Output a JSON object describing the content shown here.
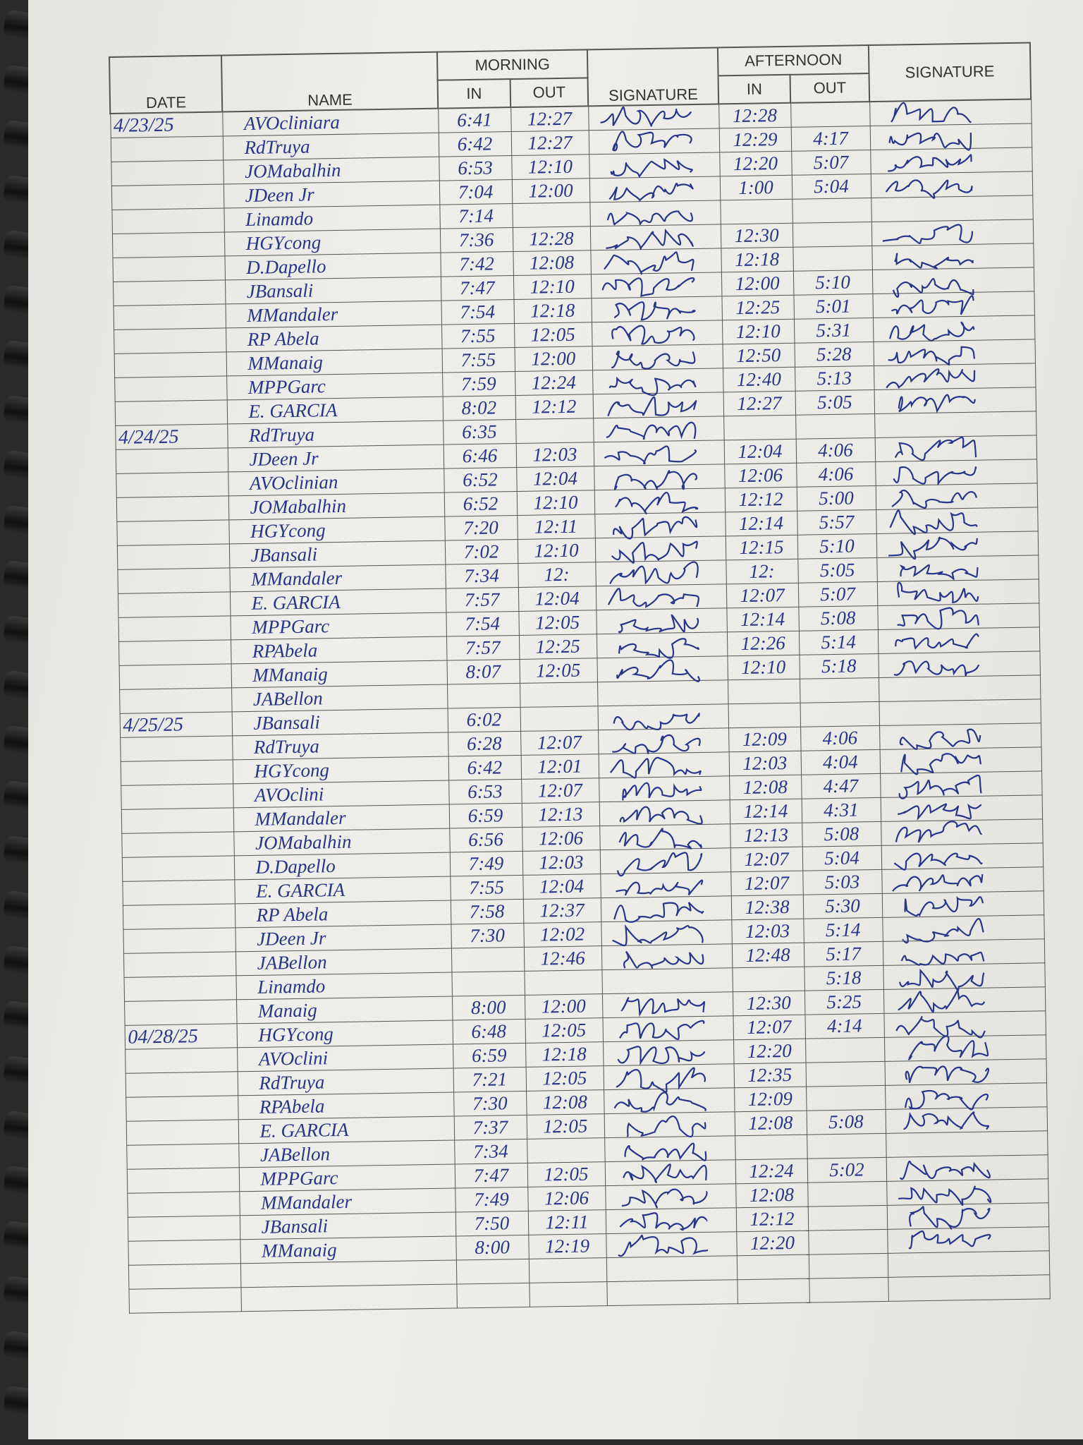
{
  "header": {
    "date": "DATE",
    "name": "NAME",
    "morning": "MORNING",
    "afternoon": "AFTERNOON",
    "in": "IN",
    "out": "OUT",
    "signature": "SIGNATURE"
  },
  "ink_color": "#27358a",
  "rows": [
    {
      "date": "4/23/25",
      "name": "AVOcliniara",
      "m_in": "6:41",
      "m_out": "12:27",
      "a_in": "12:28",
      "a_out": ""
    },
    {
      "date": "",
      "name": "RdTruya",
      "m_in": "6:42",
      "m_out": "12:27",
      "a_in": "12:29",
      "a_out": "4:17"
    },
    {
      "date": "",
      "name": "JOMabalhin",
      "m_in": "6:53",
      "m_out": "12:10",
      "a_in": "12:20",
      "a_out": "5:07"
    },
    {
      "date": "",
      "name": "JDeen Jr",
      "m_in": "7:04",
      "m_out": "12:00",
      "a_in": "1:00",
      "a_out": "5:04"
    },
    {
      "date": "",
      "name": "Linamdo",
      "m_in": "7:14",
      "m_out": "",
      "a_in": "",
      "a_out": ""
    },
    {
      "date": "",
      "name": "HGYcong",
      "m_in": "7:36",
      "m_out": "12:28",
      "a_in": "12:30",
      "a_out": ""
    },
    {
      "date": "",
      "name": "D.Dapello",
      "m_in": "7:42",
      "m_out": "12:08",
      "a_in": "12:18",
      "a_out": ""
    },
    {
      "date": "",
      "name": "JBansali",
      "m_in": "7:47",
      "m_out": "12:10",
      "a_in": "12:00",
      "a_out": "5:10"
    },
    {
      "date": "",
      "name": "MMandaler",
      "m_in": "7:54",
      "m_out": "12:18",
      "a_in": "12:25",
      "a_out": "5:01"
    },
    {
      "date": "",
      "name": "RP Abela",
      "m_in": "7:55",
      "m_out": "12:05",
      "a_in": "12:10",
      "a_out": "5:31"
    },
    {
      "date": "",
      "name": "MManaig",
      "m_in": "7:55",
      "m_out": "12:00",
      "a_in": "12:50",
      "a_out": "5:28"
    },
    {
      "date": "",
      "name": "MPPGarc",
      "m_in": "7:59",
      "m_out": "12:24",
      "a_in": "12:40",
      "a_out": "5:13"
    },
    {
      "date": "",
      "name": "E. GARCIA",
      "m_in": "8:02",
      "m_out": "12:12",
      "a_in": "12:27",
      "a_out": "5:05"
    },
    {
      "date": "4/24/25",
      "name": "RdTruya",
      "m_in": "6:35",
      "m_out": "",
      "a_in": "",
      "a_out": ""
    },
    {
      "date": "",
      "name": "JDeen Jr",
      "m_in": "6:46",
      "m_out": "12:03",
      "a_in": "12:04",
      "a_out": "4:06"
    },
    {
      "date": "",
      "name": "AVOclinian",
      "m_in": "6:52",
      "m_out": "12:04",
      "a_in": "12:06",
      "a_out": "4:06"
    },
    {
      "date": "",
      "name": "JOMabalhin",
      "m_in": "6:52",
      "m_out": "12:10",
      "a_in": "12:12",
      "a_out": "5:00"
    },
    {
      "date": "",
      "name": "HGYcong",
      "m_in": "7:20",
      "m_out": "12:11",
      "a_in": "12:14",
      "a_out": "5:57"
    },
    {
      "date": "",
      "name": "JBansali",
      "m_in": "7:02",
      "m_out": "12:10",
      "a_in": "12:15",
      "a_out": "5:10"
    },
    {
      "date": "",
      "name": "MMandaler",
      "m_in": "7:34",
      "m_out": "12:",
      "a_in": "12:",
      "a_out": "5:05"
    },
    {
      "date": "",
      "name": "E. GARCIA",
      "m_in": "7:57",
      "m_out": "12:04",
      "a_in": "12:07",
      "a_out": "5:07"
    },
    {
      "date": "",
      "name": "MPPGarc",
      "m_in": "7:54",
      "m_out": "12:05",
      "a_in": "12:14",
      "a_out": "5:08"
    },
    {
      "date": "",
      "name": "RPAbela",
      "m_in": "7:57",
      "m_out": "12:25",
      "a_in": "12:26",
      "a_out": "5:14"
    },
    {
      "date": "",
      "name": "MManaig",
      "m_in": "8:07",
      "m_out": "12:05",
      "a_in": "12:10",
      "a_out": "5:18"
    },
    {
      "date": "",
      "name": "JABellon",
      "m_in": "",
      "m_out": "",
      "a_in": "",
      "a_out": ""
    },
    {
      "date": "4/25/25",
      "name": "JBansali",
      "m_in": "6:02",
      "m_out": "",
      "a_in": "",
      "a_out": ""
    },
    {
      "date": "",
      "name": "RdTruya",
      "m_in": "6:28",
      "m_out": "12:07",
      "a_in": "12:09",
      "a_out": "4:06"
    },
    {
      "date": "",
      "name": "HGYcong",
      "m_in": "6:42",
      "m_out": "12:01",
      "a_in": "12:03",
      "a_out": "4:04"
    },
    {
      "date": "",
      "name": "AVOclini",
      "m_in": "6:53",
      "m_out": "12:07",
      "a_in": "12:08",
      "a_out": "4:47"
    },
    {
      "date": "",
      "name": "MMandaler",
      "m_in": "6:59",
      "m_out": "12:13",
      "a_in": "12:14",
      "a_out": "4:31"
    },
    {
      "date": "",
      "name": "JOMabalhin",
      "m_in": "6:56",
      "m_out": "12:06",
      "a_in": "12:13",
      "a_out": "5:08"
    },
    {
      "date": "",
      "name": "D.Dapello",
      "m_in": "7:49",
      "m_out": "12:03",
      "a_in": "12:07",
      "a_out": "5:04"
    },
    {
      "date": "",
      "name": "E. GARCIA",
      "m_in": "7:55",
      "m_out": "12:04",
      "a_in": "12:07",
      "a_out": "5:03"
    },
    {
      "date": "",
      "name": "RP Abela",
      "m_in": "7:58",
      "m_out": "12:37",
      "a_in": "12:38",
      "a_out": "5:30"
    },
    {
      "date": "",
      "name": "JDeen Jr",
      "m_in": "7:30",
      "m_out": "12:02",
      "a_in": "12:03",
      "a_out": "5:14"
    },
    {
      "date": "",
      "name": "JABellon",
      "m_in": "",
      "m_out": "12:46",
      "a_in": "12:48",
      "a_out": "5:17"
    },
    {
      "date": "",
      "name": "Linamdo",
      "m_in": "",
      "m_out": "",
      "a_in": "",
      "a_out": "5:18"
    },
    {
      "date": "",
      "name": "Manaig",
      "m_in": "8:00",
      "m_out": "12:00",
      "a_in": "12:30",
      "a_out": "5:25"
    },
    {
      "date": "04/28/25",
      "name": "HGYcong",
      "m_in": "6:48",
      "m_out": "12:05",
      "a_in": "12:07",
      "a_out": "4:14"
    },
    {
      "date": "",
      "name": "AVOclini",
      "m_in": "6:59",
      "m_out": "12:18",
      "a_in": "12:20",
      "a_out": ""
    },
    {
      "date": "",
      "name": "RdTruya",
      "m_in": "7:21",
      "m_out": "12:05",
      "a_in": "12:35",
      "a_out": ""
    },
    {
      "date": "",
      "name": "RPAbela",
      "m_in": "7:30",
      "m_out": "12:08",
      "a_in": "12:09",
      "a_out": ""
    },
    {
      "date": "",
      "name": "E. GARCIA",
      "m_in": "7:37",
      "m_out": "12:05",
      "a_in": "12:08",
      "a_out": "5:08"
    },
    {
      "date": "",
      "name": "JABellon",
      "m_in": "7:34",
      "m_out": "",
      "a_in": "",
      "a_out": ""
    },
    {
      "date": "",
      "name": "MPPGarc",
      "m_in": "7:47",
      "m_out": "12:05",
      "a_in": "12:24",
      "a_out": "5:02"
    },
    {
      "date": "",
      "name": "MMandaler",
      "m_in": "7:49",
      "m_out": "12:06",
      "a_in": "12:08",
      "a_out": ""
    },
    {
      "date": "",
      "name": "JBansali",
      "m_in": "7:50",
      "m_out": "12:11",
      "a_in": "12:12",
      "a_out": ""
    },
    {
      "date": "",
      "name": "MManaig",
      "m_in": "8:00",
      "m_out": "12:19",
      "a_in": "12:20",
      "a_out": ""
    },
    {
      "date": "",
      "name": "",
      "m_in": "",
      "m_out": "",
      "a_in": "",
      "a_out": ""
    },
    {
      "date": "",
      "name": "",
      "m_in": "",
      "m_out": "",
      "a_in": "",
      "a_out": ""
    }
  ]
}
